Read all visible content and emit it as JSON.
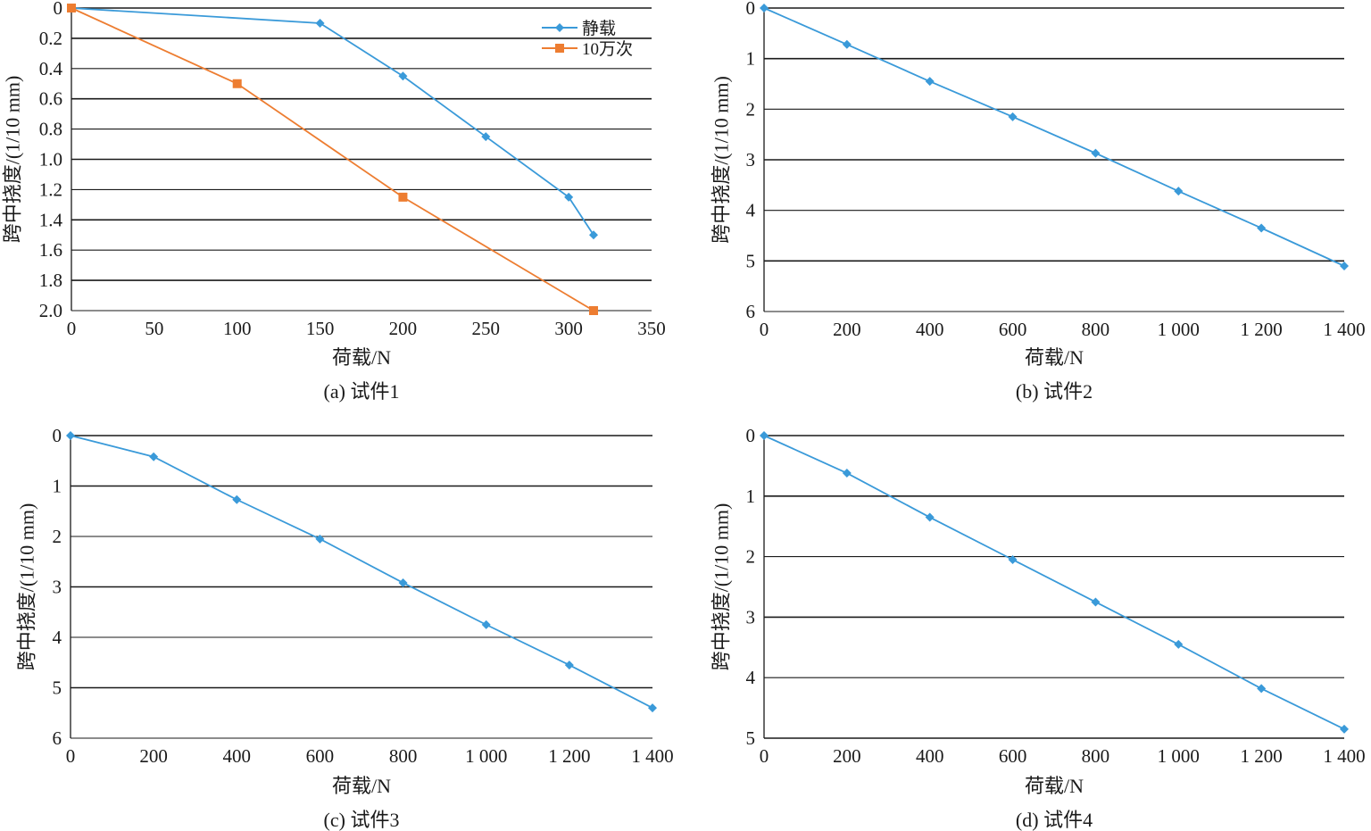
{
  "chart_data": [
    {
      "type": "line",
      "caption": "(a) 试件1",
      "xlabel": "荷载/N",
      "ylabel": "跨中挠度/(1/10 mm)",
      "xlim": [
        0,
        350
      ],
      "ylim": [
        0,
        2.0
      ],
      "y_inverted": true,
      "x_ticks": [
        "0",
        "50",
        "100",
        "150",
        "200",
        "250",
        "300",
        "350"
      ],
      "x_tick_values": [
        0,
        50,
        100,
        150,
        200,
        250,
        300,
        350
      ],
      "y_ticks": [
        "0",
        "0.2",
        "0.4",
        "0.6",
        "0.8",
        "1.0",
        "1.2",
        "1.4",
        "1.6",
        "1.8",
        "2.0"
      ],
      "y_tick_values": [
        0,
        0.2,
        0.4,
        0.6,
        0.8,
        1.0,
        1.2,
        1.4,
        1.6,
        1.8,
        2.0
      ],
      "grid": true,
      "legend_position": "top-right",
      "series": [
        {
          "name": "静载",
          "color": "#3a9ad9",
          "marker": "diamond",
          "x": [
            0,
            150,
            200,
            250,
            300,
            315
          ],
          "y": [
            0,
            0.1,
            0.45,
            0.85,
            1.25,
            1.5
          ]
        },
        {
          "name": "10万次",
          "color": "#ed7d31",
          "marker": "square",
          "x": [
            0,
            100,
            200,
            315
          ],
          "y": [
            0,
            0.5,
            1.25,
            2.0
          ]
        }
      ]
    },
    {
      "type": "line",
      "caption": "(b) 试件2",
      "xlabel": "荷载/N",
      "ylabel": "跨中挠度/(1/10 mm)",
      "xlim": [
        0,
        1400
      ],
      "ylim": [
        0,
        6
      ],
      "y_inverted": true,
      "x_ticks": [
        "0",
        "200",
        "400",
        "600",
        "800",
        "1 000",
        "1 200",
        "1 400"
      ],
      "x_tick_values": [
        0,
        200,
        400,
        600,
        800,
        1000,
        1200,
        1400
      ],
      "y_ticks": [
        "0",
        "1",
        "2",
        "3",
        "4",
        "5",
        "6"
      ],
      "y_tick_values": [
        0,
        1,
        2,
        3,
        4,
        5,
        6
      ],
      "grid": true,
      "series": [
        {
          "color": "#3a9ad9",
          "marker": "diamond",
          "x": [
            0,
            200,
            400,
            600,
            800,
            1000,
            1200,
            1400
          ],
          "y": [
            0,
            0.72,
            1.45,
            2.15,
            2.87,
            3.62,
            4.35,
            5.1
          ]
        }
      ]
    },
    {
      "type": "line",
      "caption": "(c) 试件3",
      "xlabel": "荷载/N",
      "ylabel": "跨中挠度/(1/10 mm)",
      "xlim": [
        0,
        1400
      ],
      "ylim": [
        0,
        6
      ],
      "y_inverted": true,
      "x_ticks": [
        "0",
        "200",
        "400",
        "600",
        "800",
        "1 000",
        "1 200",
        "1 400"
      ],
      "x_tick_values": [
        0,
        200,
        400,
        600,
        800,
        1000,
        1200,
        1400
      ],
      "y_ticks": [
        "0",
        "1",
        "2",
        "3",
        "4",
        "5",
        "6"
      ],
      "y_tick_values": [
        0,
        1,
        2,
        3,
        4,
        5,
        6
      ],
      "grid": true,
      "series": [
        {
          "color": "#3a9ad9",
          "marker": "diamond",
          "x": [
            0,
            200,
            400,
            600,
            800,
            1000,
            1200,
            1400
          ],
          "y": [
            0,
            0.42,
            1.27,
            2.05,
            2.92,
            3.75,
            4.55,
            5.4
          ]
        }
      ]
    },
    {
      "type": "line",
      "caption": "(d) 试件4",
      "xlabel": "荷载/N",
      "ylabel": "跨中挠度/(1/10 mm)",
      "xlim": [
        0,
        1400
      ],
      "ylim": [
        0,
        5
      ],
      "y_inverted": true,
      "x_ticks": [
        "0",
        "200",
        "400",
        "600",
        "800",
        "1 000",
        "1 200",
        "1 400"
      ],
      "x_tick_values": [
        0,
        200,
        400,
        600,
        800,
        1000,
        1200,
        1400
      ],
      "y_ticks": [
        "0",
        "1",
        "2",
        "3",
        "4",
        "5"
      ],
      "y_tick_values": [
        0,
        1,
        2,
        3,
        4,
        5
      ],
      "grid": true,
      "series": [
        {
          "color": "#3a9ad9",
          "marker": "diamond",
          "x": [
            0,
            200,
            400,
            600,
            800,
            1000,
            1200,
            1400
          ],
          "y": [
            0,
            0.62,
            1.35,
            2.05,
            2.75,
            3.45,
            4.18,
            4.85
          ]
        }
      ]
    }
  ]
}
